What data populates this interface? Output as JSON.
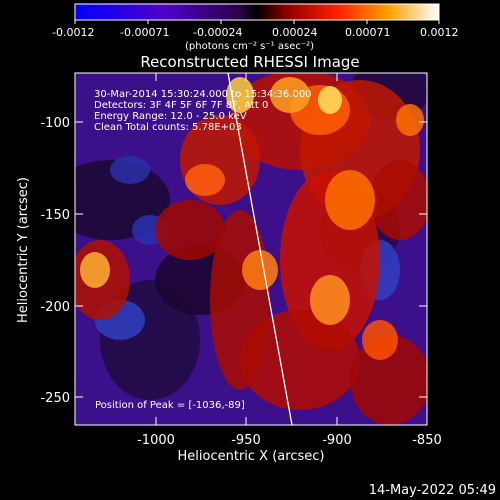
{
  "colorbar": {
    "tick_labels": [
      "-0.0012",
      "-0.00071",
      "-0.00024",
      "0.00024",
      "0.00071",
      "0.0012"
    ],
    "unit_label": "(photons cm⁻² s⁻¹ asec⁻²)",
    "range": [
      -0.0012,
      0.0012
    ]
  },
  "image": {
    "title": "Reconstructed RHESSI Image",
    "info_lines": [
      "30-Mar-2014 15:30:24.000 to 15:34:36.000",
      "Detectors: 3F 4F 5F 6F 7F 8F, Att 0",
      "Energy Range: 12.0 - 25.0 keV",
      "Clean     Total counts: 5.78E+03"
    ],
    "peak_label": "Position of Peak = [-1036,-89]",
    "x_axis": {
      "label": "Heliocentric X (arcsec)",
      "ticks": [
        "-1000",
        "-950",
        "-900",
        "-850"
      ],
      "range": [
        -1045,
        -850
      ]
    },
    "y_axis": {
      "label": "Heliocentric Y (arcsec)",
      "ticks": [
        "-100",
        "-150",
        "-200",
        "-250"
      ],
      "range": [
        -265,
        -75
      ]
    }
  },
  "footer": {
    "timestamp": "14-May-2022 05:49"
  }
}
